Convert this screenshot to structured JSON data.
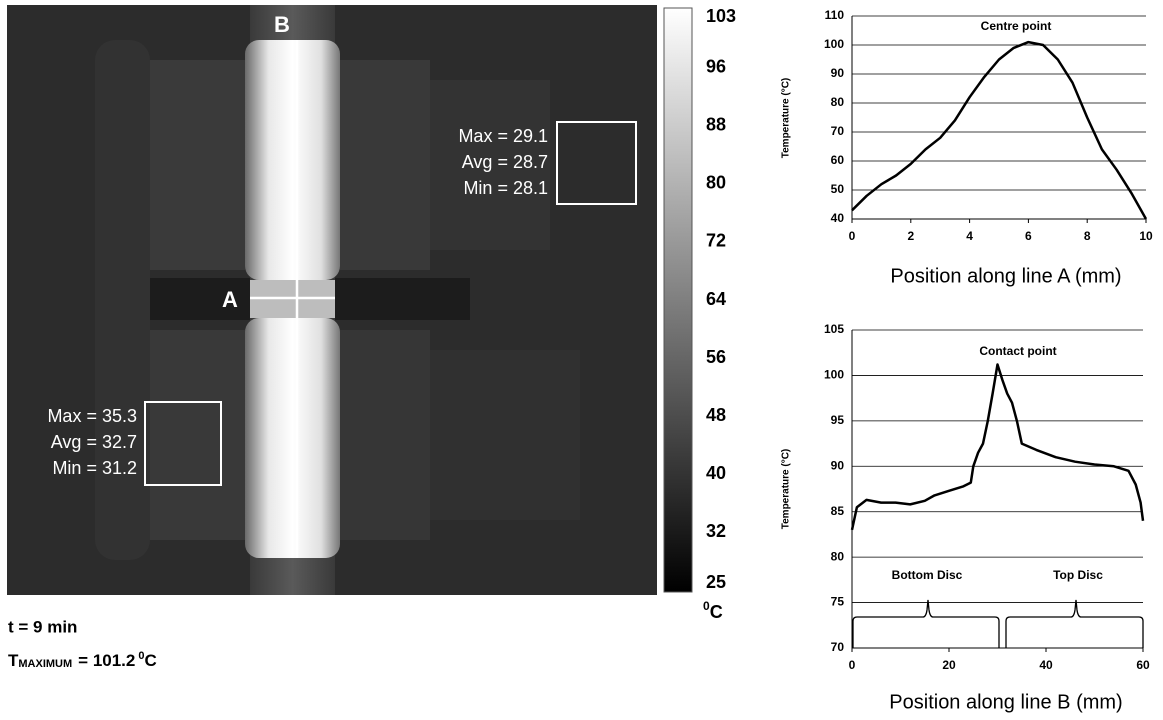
{
  "thermal_image": {
    "line_labels": [
      "B",
      "A"
    ],
    "regions": [
      {
        "lines": [
          "Max = 29.1",
          "Avg = 28.7",
          "Min = 28.1"
        ]
      },
      {
        "lines": [
          "Max = 35.3",
          "Avg = 32.7",
          "Min = 31.2"
        ]
      }
    ],
    "colorbar": {
      "lim": [
        25,
        103
      ],
      "ticks": [
        103,
        96,
        88,
        80,
        72,
        64,
        56,
        48,
        40,
        32,
        25
      ],
      "unit_degree": "0",
      "unit": "C"
    }
  },
  "caption": {
    "time": "t = 9 min",
    "symbol": "T",
    "subscript": "MAXIMUM",
    "value": "= 101.2",
    "unit_degree": "0",
    "unit": "C"
  },
  "chart_data": [
    {
      "type": "line",
      "annotation": "Centre point",
      "x_label": "Position along line A (mm)",
      "y_label": "Temperature (°C)",
      "x": [
        0,
        0.5,
        1,
        1.5,
        2,
        2.5,
        3,
        3.5,
        4,
        4.5,
        5,
        5.5,
        6,
        6.5,
        7,
        7.5,
        8,
        8.5,
        9,
        9.5,
        10
      ],
      "values": [
        43,
        48,
        52,
        55,
        59,
        64,
        68,
        74,
        82,
        89,
        95,
        99,
        101,
        100,
        95,
        87,
        75,
        64,
        57,
        49,
        40
      ],
      "color": "#000000",
      "xlim": [
        0,
        10
      ],
      "ylim": [
        40,
        110
      ],
      "xticks": [
        0,
        2,
        4,
        6,
        8,
        10
      ],
      "yticks": [
        40,
        50,
        60,
        70,
        80,
        90,
        100,
        110
      ],
      "grid": true
    },
    {
      "type": "line",
      "annotation": "Contact point",
      "x_label": "Position along line B (mm)",
      "y_label": "Temperature (°C)",
      "disc_labels": [
        "Bottom Disc",
        "Top Disc"
      ],
      "x": [
        0,
        1,
        3,
        6,
        9,
        12,
        15,
        17,
        20,
        23,
        24.5,
        25,
        26,
        27,
        28,
        29,
        30,
        31,
        32,
        33,
        34,
        35,
        38,
        42,
        46,
        50,
        54,
        57,
        58.5,
        59.5,
        60
      ],
      "values": [
        83,
        85.5,
        86.3,
        86,
        86,
        85.8,
        86.2,
        86.8,
        87.3,
        87.8,
        88.2,
        90,
        91.5,
        92.5,
        95,
        98,
        101.2,
        99.5,
        98,
        97,
        95,
        92.5,
        91.8,
        91,
        90.5,
        90.2,
        90,
        89.5,
        88,
        86,
        84
      ],
      "color": "#000000",
      "xlim": [
        0,
        60
      ],
      "ylim": [
        70,
        105
      ],
      "xticks": [
        0,
        20,
        40,
        60
      ],
      "yticks": [
        70,
        75,
        80,
        85,
        90,
        95,
        100,
        105
      ],
      "grid": true
    }
  ]
}
